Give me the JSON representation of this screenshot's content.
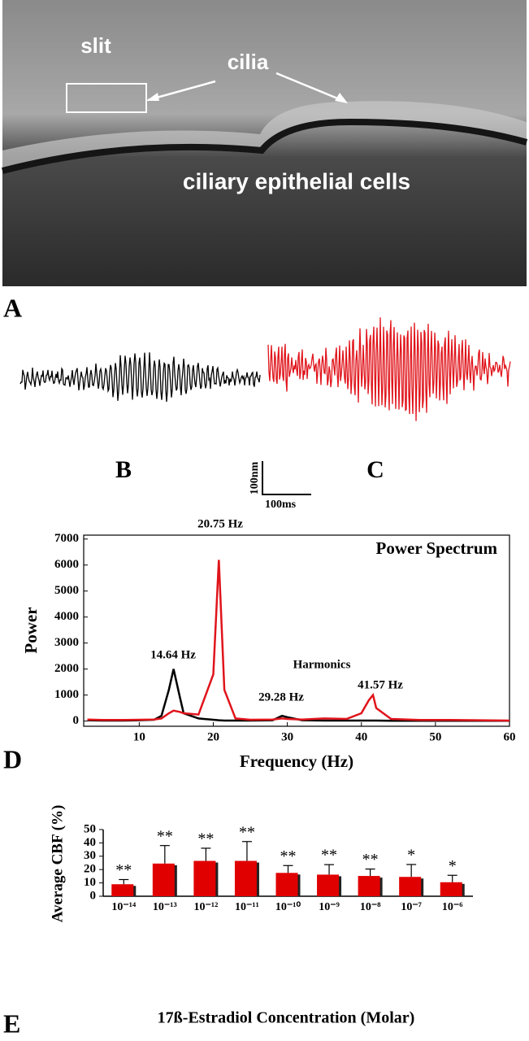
{
  "panel_a": {
    "labels": [
      "slit",
      "cilia",
      "ciliary epithelial cells"
    ]
  },
  "panel_letters": [
    "A",
    "B",
    "C",
    "D",
    "E"
  ],
  "scale_bar": {
    "vertical": "100nm",
    "horizontal": "100ms"
  },
  "chart_data": [
    {
      "type": "line",
      "title": "Power Spectrum",
      "xlabel": "Frequency (Hz)",
      "ylabel": "Power",
      "x": [
        3,
        5,
        8,
        10,
        12,
        13,
        14,
        14.64,
        15.5,
        16,
        18,
        20,
        20.75,
        21.5,
        23,
        25,
        28,
        29.28,
        30,
        32,
        35,
        38,
        40,
        41,
        41.57,
        42,
        44,
        48,
        52,
        56,
        60
      ],
      "series": [
        {
          "color": "#000000",
          "values": [
            30,
            20,
            20,
            30,
            50,
            200,
            1200,
            2000,
            900,
            300,
            100,
            50,
            30,
            20,
            20,
            20,
            30,
            200,
            150,
            30,
            20,
            20,
            20,
            20,
            20,
            20,
            10,
            10,
            10,
            10,
            10
          ]
        },
        {
          "color": "#e0141b",
          "values": [
            60,
            40,
            40,
            50,
            60,
            100,
            300,
            400,
            350,
            300,
            250,
            1800,
            6200,
            1200,
            100,
            50,
            60,
            100,
            80,
            60,
            100,
            80,
            300,
            800,
            1000,
            500,
            80,
            40,
            40,
            30,
            20
          ]
        }
      ],
      "xlim": [
        2.5,
        60
      ],
      "ylim": [
        -200,
        7150
      ],
      "xticks": [
        10,
        20,
        30,
        40,
        50,
        60
      ],
      "yticks": [
        0,
        1000,
        2000,
        3000,
        4000,
        5000,
        6000,
        7000
      ],
      "annotations": [
        "20.75 Hz",
        "14.64 Hz",
        "29.28 Hz",
        "Harmonics",
        "41.57 Hz"
      ]
    },
    {
      "type": "bar",
      "xlabel": "17ß-Estradiol Concentration (Molar)",
      "ylabel": "Average CBF (%)",
      "categories": [
        "10⁻¹⁴",
        "10⁻¹³",
        "10⁻¹²",
        "10⁻¹¹",
        "10⁻¹⁰",
        "10⁻⁹",
        "10⁻⁸",
        "10⁻⁷",
        "10⁻⁶"
      ],
      "values": [
        9,
        24.5,
        26.5,
        26.5,
        17.5,
        16.2,
        15.2,
        14.5,
        10.5
      ],
      "errors": [
        3.5,
        13.5,
        9.5,
        14.5,
        5.5,
        7.5,
        5.2,
        9.3,
        5.2
      ],
      "significance": [
        "**",
        "**",
        "**",
        "**",
        "**",
        "**",
        "**",
        "*",
        "*"
      ],
      "color": "#e00000",
      "ylim": [
        0,
        50
      ],
      "yticks": [
        0,
        10,
        20,
        30,
        40,
        50
      ]
    }
  ]
}
